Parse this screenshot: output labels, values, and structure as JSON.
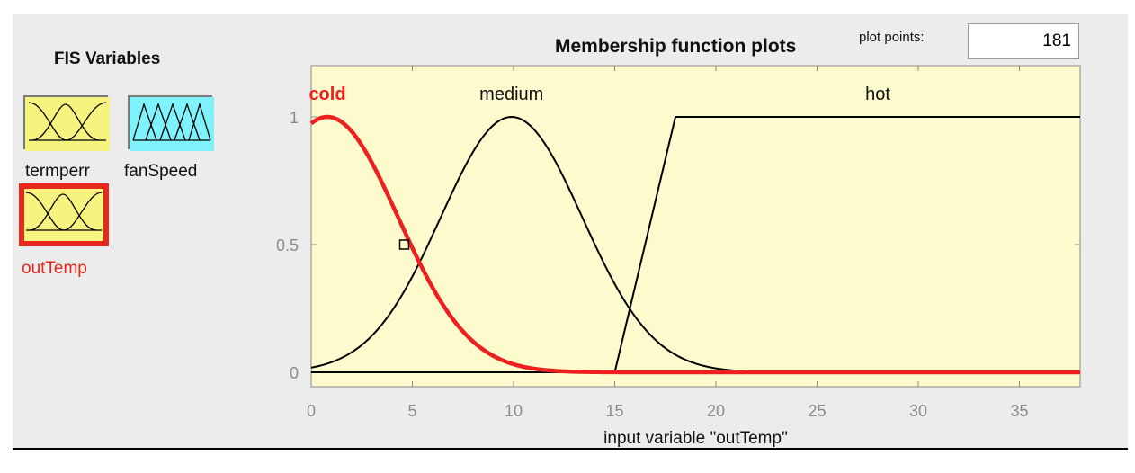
{
  "fis_panel": {
    "title": "FIS Variables",
    "variables": [
      {
        "name": "termperr",
        "kind": "input",
        "color": "#f7f37f",
        "selected": false
      },
      {
        "name": "fanSpeed",
        "kind": "output",
        "color": "#7ff2fb",
        "selected": false
      },
      {
        "name": "outTemp",
        "kind": "input",
        "color": "#f7f37f",
        "selected": true
      }
    ]
  },
  "plot_header": {
    "title": "Membership function plots",
    "plot_points_label": "plot points:",
    "plot_points_value": "181"
  },
  "colors": {
    "plot_background": "#fdfbcd",
    "selected": "#ee1f1f",
    "curve": "#000000",
    "axis_text": "#8a8a8a"
  },
  "chart_data": {
    "type": "line",
    "title": "Membership function plots",
    "xlabel": "input variable \"outTemp\"",
    "ylabel": "",
    "xlim": [
      0,
      38
    ],
    "ylim": [
      0,
      1
    ],
    "x_ticks": [
      0,
      5,
      10,
      15,
      20,
      25,
      30,
      35
    ],
    "y_ticks": [
      0,
      0.5,
      1
    ],
    "y_tick_labels": [
      "0",
      "0.5",
      "1"
    ],
    "series": [
      {
        "name": "cold",
        "shape": "gaussian",
        "center": 0.8,
        "sigma": 3.5,
        "selected": true,
        "label_x": 0.8
      },
      {
        "name": "medium",
        "shape": "gaussian",
        "center": 9.9,
        "sigma": 3.5,
        "selected": false,
        "label_x": 9.9
      },
      {
        "name": "hot",
        "shape": "trapezoid",
        "points": [
          [
            0,
            0
          ],
          [
            15,
            0
          ],
          [
            18,
            1
          ],
          [
            38,
            1
          ]
        ],
        "selected": false,
        "label_x": 28
      }
    ],
    "handle": {
      "x": 4.6,
      "y": 0.5
    }
  }
}
